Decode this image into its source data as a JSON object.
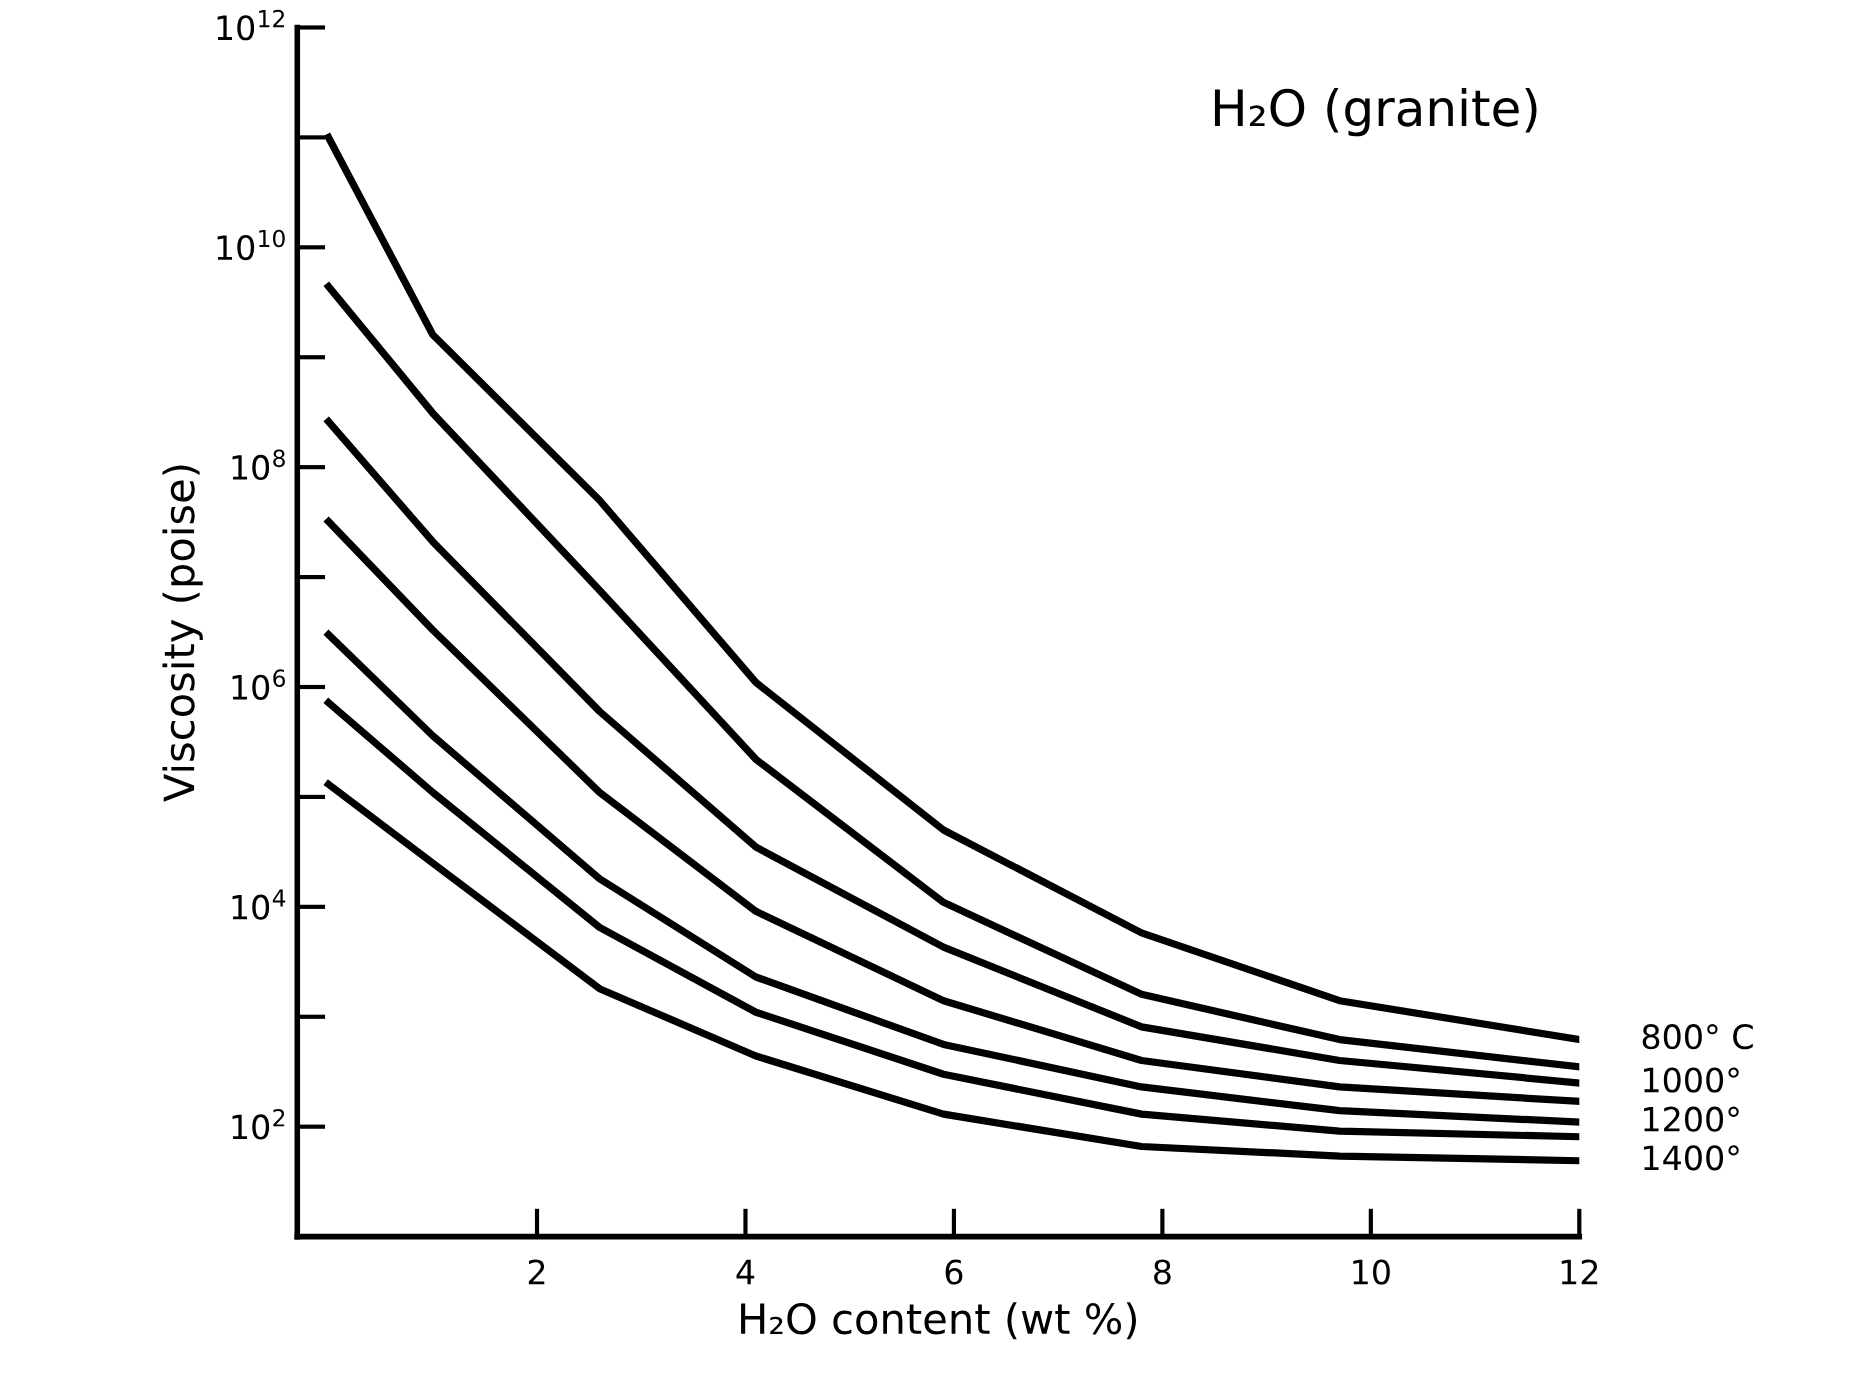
{
  "chart_data": {
    "type": "line",
    "title": "H₂O (granite)",
    "xlabel": "H₂O content (wt %)",
    "ylabel": "Viscosity (poise)",
    "x": [
      0,
      1,
      2.6,
      4.1,
      5.9,
      7.8,
      9.7,
      12
    ],
    "series": [
      {
        "name": "800° C",
        "color": "#000000",
        "values": [
          100000000000.0,
          1600000000.0,
          50000000.0,
          1100000.0,
          50000.0,
          5800,
          1400,
          620
        ]
      },
      {
        "color": "#000000",
        "values": [
          4400000000.0,
          310000000.0,
          7600000.0,
          220000.0,
          11000.0,
          1600,
          620,
          350
        ]
      },
      {
        "name": "1000°",
        "color": "#000000",
        "values": [
          260000000.0,
          21000000.0,
          600000.0,
          35000.0,
          4300,
          810,
          400,
          250
        ]
      },
      {
        "color": "#000000",
        "values": [
          32000000.0,
          3300000.0,
          110000.0,
          9100,
          1400,
          400,
          230,
          170
        ]
      },
      {
        "name": "1200°",
        "color": "#000000",
        "values": [
          3000000.0,
          360000.0,
          18000.0,
          2300,
          560,
          230,
          140,
          110
        ]
      },
      {
        "color": "#000000",
        "values": [
          720000.0,
          110000.0,
          6500,
          1100,
          300,
          130,
          91,
          81
        ]
      },
      {
        "name": "1400°",
        "color": "#000000",
        "values": [
          130000.0,
          25000.0,
          1800,
          440,
          130,
          66,
          54,
          49
        ]
      }
    ],
    "log": "y",
    "xlim": [
      -0.3,
      12
    ],
    "ylim": [
      10,
      1000000000000.0
    ],
    "xticks": [
      2,
      4,
      6,
      8,
      10,
      12
    ],
    "yticks": [
      {
        "value": 100,
        "label": "10$^{2}$"
      },
      {
        "value": 1000,
        "label": null
      },
      {
        "value": 10000,
        "label": "10$^{4}$"
      },
      {
        "value": 100000.0,
        "label": null
      },
      {
        "value": 1000000.0,
        "label": "10$^{6}$"
      },
      {
        "value": 10000000.0,
        "label": null
      },
      {
        "value": 100000000.0,
        "label": "10$^{8}$"
      },
      {
        "value": 1000000000.0,
        "label": null
      },
      {
        "value": 10000000000.0,
        "label": "10$^{10}$"
      },
      {
        "value": 100000000000.0,
        "label": null
      },
      {
        "value": 1000000000000.0,
        "label": "10$^{12}$"
      }
    ],
    "grid": false,
    "legend": false,
    "marker": "none",
    "line_style": "solid"
  }
}
